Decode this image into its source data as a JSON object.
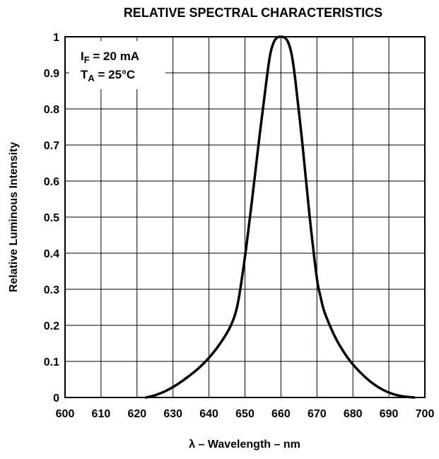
{
  "chart_data": {
    "type": "line",
    "title": "RELATIVE SPECTRAL CHARACTERISTICS",
    "xlabel": "λ – Wavelength – nm",
    "ylabel": "Relative Luminous Intensity",
    "xlim": [
      600,
      700
    ],
    "ylim": [
      0,
      1
    ],
    "x_ticks": [
      600,
      610,
      620,
      630,
      640,
      650,
      660,
      670,
      680,
      690,
      700
    ],
    "x_tick_labels": [
      "600",
      "610",
      "620",
      "630",
      "640",
      "650",
      "660",
      "670",
      "680",
      "690",
      "700"
    ],
    "y_ticks": [
      0,
      0.1,
      0.2,
      0.3,
      0.4,
      0.5,
      0.6,
      0.7,
      0.8,
      0.9,
      1
    ],
    "y_tick_labels": [
      "0",
      "0.1",
      "0.2",
      "0.3",
      "0.4",
      "0.5",
      "0.6",
      "0.7",
      "0.8",
      "0.9",
      "1"
    ],
    "grid": true,
    "annotation": {
      "line1": {
        "main": "I",
        "sub": "F",
        "rest": " = 20 mA"
      },
      "line2": {
        "main": "T",
        "sub": "A",
        "rest": " = 25°C"
      }
    },
    "series": [
      {
        "x": [
          622.5,
          625,
          628,
          631,
          634,
          637,
          640,
          643,
          646,
          648,
          650,
          652,
          654,
          656,
          657,
          658,
          659,
          660,
          661,
          662,
          663,
          664,
          666,
          668,
          670,
          671,
          672,
          674,
          676,
          679,
          682,
          685,
          688,
          691,
          694,
          697
        ],
        "y": [
          0,
          0.006,
          0.018,
          0.035,
          0.056,
          0.08,
          0.11,
          0.148,
          0.198,
          0.26,
          0.39,
          0.55,
          0.72,
          0.88,
          0.95,
          0.985,
          0.998,
          1.0,
          0.998,
          0.985,
          0.95,
          0.88,
          0.7,
          0.5,
          0.33,
          0.28,
          0.24,
          0.19,
          0.15,
          0.104,
          0.07,
          0.043,
          0.023,
          0.01,
          0.003,
          0.0
        ]
      }
    ],
    "style": {
      "line_color": "#000000",
      "grid_color": "#000000",
      "background": "#ffffff"
    }
  }
}
